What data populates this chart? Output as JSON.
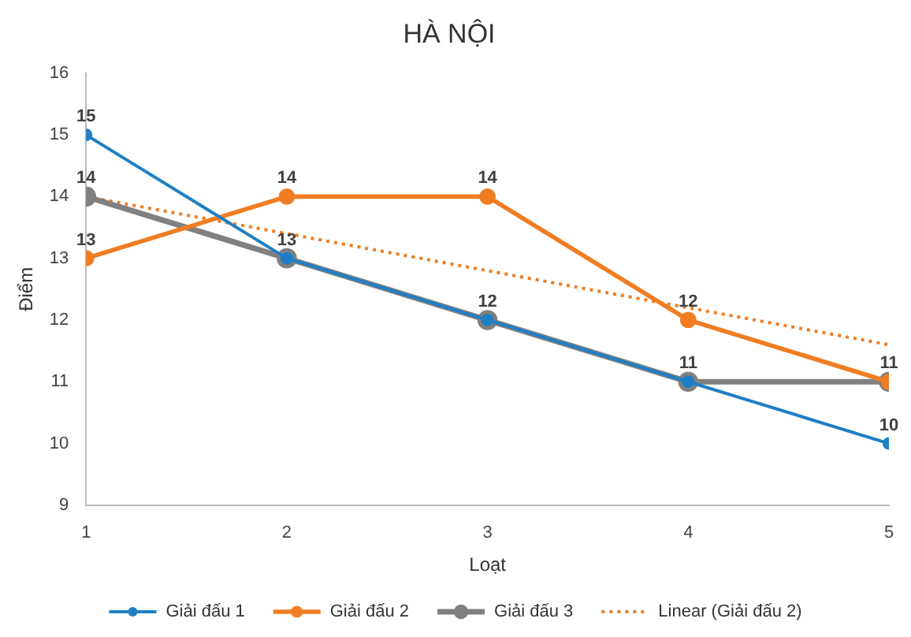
{
  "chart_data": {
    "type": "line",
    "title": "HÀ NỘI",
    "xlabel": "Loạt",
    "ylabel": "Điểm",
    "x": [
      1,
      2,
      3,
      4,
      5
    ],
    "xlim": [
      1,
      5
    ],
    "xticks": [
      1,
      2,
      3,
      4,
      5
    ],
    "ylim": [
      9,
      16
    ],
    "yticks": [
      9,
      10,
      11,
      12,
      13,
      14,
      15,
      16
    ],
    "grid": false,
    "legend": "bottom",
    "marker": "circle",
    "line_style": "solid",
    "series": [
      {
        "name": "Giải đấu 1",
        "color": "#1f7fc4",
        "values": [
          15,
          13,
          12,
          11,
          10
        ],
        "value_labels": [
          "15",
          "13",
          "12",
          "11",
          "10"
        ]
      },
      {
        "name": "Giải đấu 2",
        "color": "#f07d22",
        "values": [
          13,
          14,
          14,
          12,
          11
        ],
        "value_labels": [
          "13",
          "14",
          "14",
          "12",
          null
        ]
      },
      {
        "name": "Giải đấu 3",
        "color": "#808080",
        "values": [
          14,
          13,
          12,
          11,
          11
        ],
        "value_labels": [
          "14",
          null,
          null,
          null,
          "11"
        ]
      },
      {
        "name": "Linear (Giải đấu 2)",
        "type": "line",
        "color": "#f07d22",
        "x": [
          1,
          5
        ],
        "values": [
          14,
          11.6
        ],
        "line_style": "dotted",
        "marker": "none"
      }
    ]
  }
}
